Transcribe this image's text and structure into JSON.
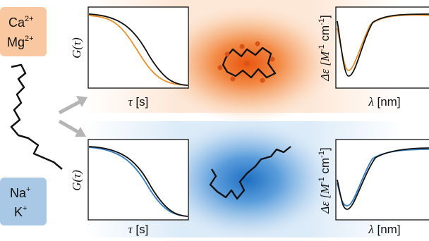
{
  "ions_top": [
    {
      "symbol": "Ca",
      "charge": "2+"
    },
    {
      "symbol": "Mg",
      "charge": "2+"
    }
  ],
  "ions_bottom": [
    {
      "symbol": "Na",
      "charge": "+"
    },
    {
      "symbol": "K",
      "charge": "+"
    }
  ],
  "fcs_panel": {
    "y_label": "G(τ)",
    "x_label_symbol": "τ",
    "x_label_unit": " [s]"
  },
  "cd_panel": {
    "y_label_start": "Δε [M",
    "y_label_sup1": "-1",
    "y_label_mid": " cm",
    "y_label_sup2": "-1",
    "y_label_end": "]",
    "x_label_symbol": "λ",
    "x_label_unit": " [nm]"
  }
}
